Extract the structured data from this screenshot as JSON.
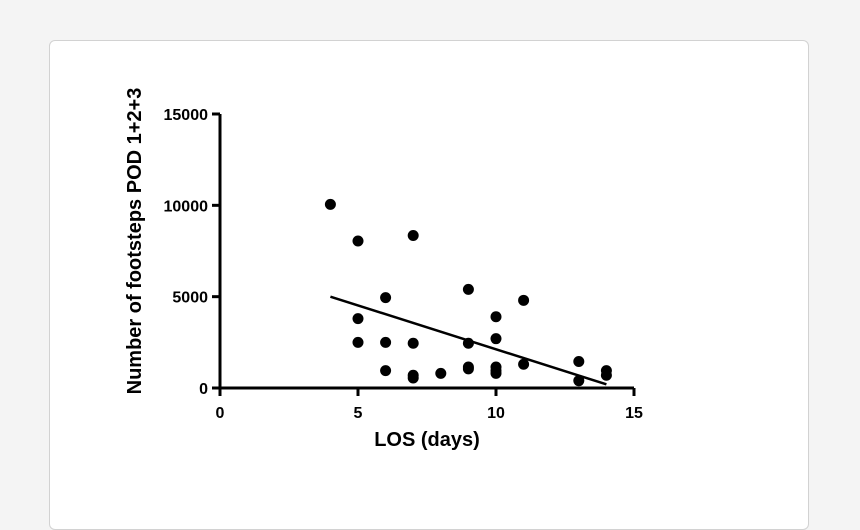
{
  "chart_data": {
    "type": "scatter",
    "xlabel": "LOS (days)",
    "ylabel": "Number of footsteps POD 1+2+3",
    "xlim": [
      0,
      15
    ],
    "ylim": [
      0,
      15000
    ],
    "x_ticks": [
      0,
      5,
      10,
      15
    ],
    "y_ticks": [
      0,
      5000,
      10000,
      15000
    ],
    "x_tick_labels": [
      "0",
      "5",
      "10",
      "15"
    ],
    "y_tick_labels": [
      "0",
      "5000",
      "10000",
      "15000"
    ],
    "grid": false,
    "marker_color": "#000000",
    "series": [
      {
        "points": [
          {
            "x": 4,
            "y": 10050
          },
          {
            "x": 5,
            "y": 8050
          },
          {
            "x": 5,
            "y": 3800
          },
          {
            "x": 5,
            "y": 2500
          },
          {
            "x": 6,
            "y": 4950
          },
          {
            "x": 6,
            "y": 2500
          },
          {
            "x": 6,
            "y": 950
          },
          {
            "x": 7,
            "y": 8350
          },
          {
            "x": 7,
            "y": 2450
          },
          {
            "x": 7,
            "y": 700
          },
          {
            "x": 7,
            "y": 550
          },
          {
            "x": 8,
            "y": 800
          },
          {
            "x": 9,
            "y": 5400
          },
          {
            "x": 9,
            "y": 2450
          },
          {
            "x": 9,
            "y": 1150
          },
          {
            "x": 9,
            "y": 1050
          },
          {
            "x": 10,
            "y": 3900
          },
          {
            "x": 10,
            "y": 2700
          },
          {
            "x": 10,
            "y": 1150
          },
          {
            "x": 10,
            "y": 950
          },
          {
            "x": 10,
            "y": 800
          },
          {
            "x": 11,
            "y": 4800
          },
          {
            "x": 11,
            "y": 1300
          },
          {
            "x": 13,
            "y": 1450
          },
          {
            "x": 13,
            "y": 400
          },
          {
            "x": 14,
            "y": 950
          },
          {
            "x": 14,
            "y": 700
          }
        ]
      }
    ],
    "trendline": {
      "x": [
        4,
        14
      ],
      "y": [
        5000,
        200
      ]
    }
  }
}
